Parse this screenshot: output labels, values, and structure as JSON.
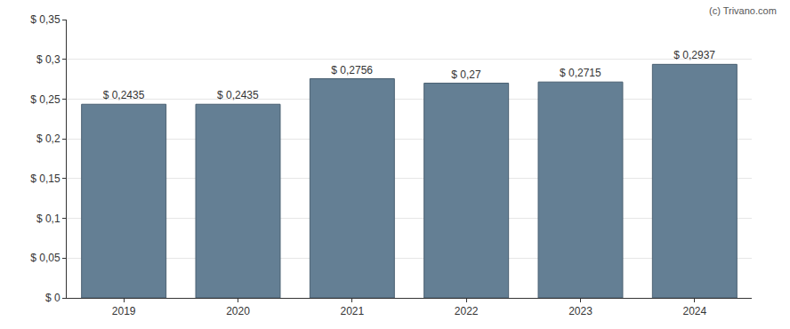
{
  "chart_data": {
    "type": "bar",
    "annotation": "(c) Trivano.com",
    "categories": [
      "2019",
      "2020",
      "2021",
      "2022",
      "2023",
      "2024"
    ],
    "values": [
      0.2435,
      0.2435,
      0.2756,
      0.27,
      0.2715,
      0.2937
    ],
    "value_labels": [
      "$ 0,2435",
      "$ 0,2435",
      "$ 0,2756",
      "$ 0,27",
      "$ 0,2715",
      "$ 0,2937"
    ],
    "data_labels": true,
    "color": "#647f94",
    "ylim": [
      0,
      0.35
    ],
    "yticks": [
      {
        "value": 0,
        "label": "$ 0"
      },
      {
        "value": 0.05,
        "label": "$ 0,05"
      },
      {
        "value": 0.1,
        "label": "$ 0,1"
      },
      {
        "value": 0.15,
        "label": "$ 0,15"
      },
      {
        "value": 0.2,
        "label": "$ 0,2"
      },
      {
        "value": 0.25,
        "label": "$ 0,25"
      },
      {
        "value": 0.3,
        "label": "$ 0,3"
      },
      {
        "value": 0.35,
        "label": "$ 0,35"
      }
    ],
    "grid": true
  }
}
